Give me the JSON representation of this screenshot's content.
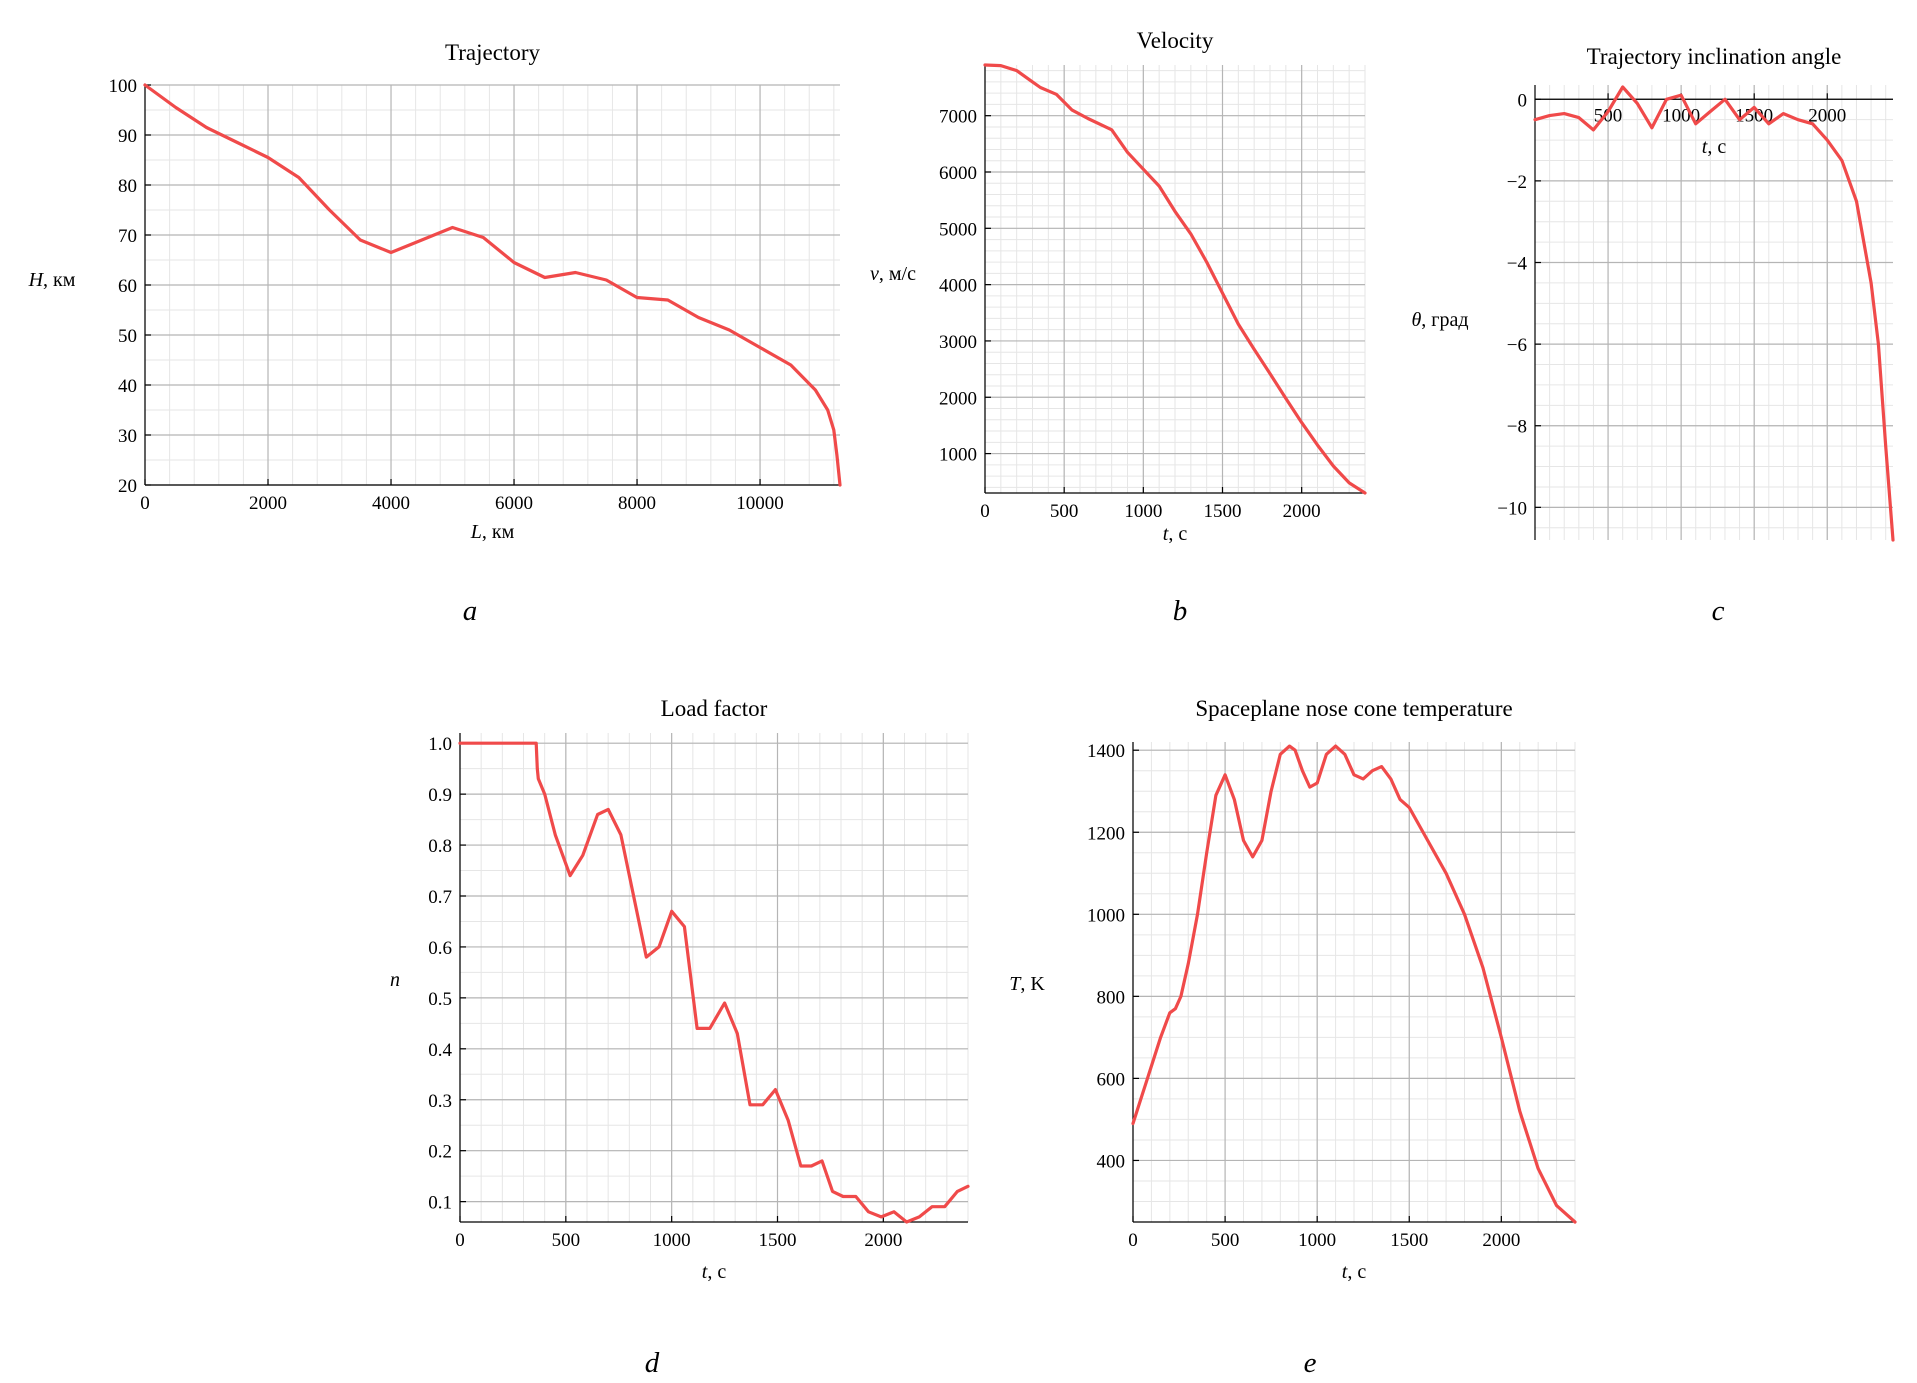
{
  "colors": {
    "series": "#f04a4a",
    "grid_major": "#b5b5b5",
    "grid_minor": "#e6e6e6"
  },
  "chart_data": [
    {
      "id": "a",
      "type": "line",
      "title": "Trajectory",
      "xlabel": "L, км",
      "ylabel": "H, км",
      "xlim": [
        0,
        11300
      ],
      "ylim": [
        20,
        100
      ],
      "xticks": [
        0,
        2000,
        4000,
        6000,
        8000,
        10000
      ],
      "yticks": [
        20,
        30,
        40,
        50,
        60,
        70,
        80,
        90,
        100
      ],
      "grid": true,
      "panel_letter": "a",
      "series": [
        {
          "x": [
            0,
            500,
            1000,
            1500,
            2000,
            2500,
            3000,
            3500,
            4000,
            4500,
            5000,
            5500,
            6000,
            6500,
            7000,
            7500,
            8000,
            8500,
            9000,
            9500,
            10000,
            10500,
            10900,
            11100,
            11200,
            11250,
            11300
          ],
          "y": [
            100,
            95.5,
            91.5,
            88.5,
            85.5,
            81.5,
            75,
            69,
            66.5,
            69,
            71.5,
            69.5,
            64.5,
            61.5,
            62.5,
            61,
            57.5,
            57,
            53.5,
            51,
            47.5,
            44,
            39,
            35,
            31,
            26,
            20
          ]
        }
      ]
    },
    {
      "id": "b",
      "type": "line",
      "title": "Velocity",
      "xlabel": "t, с",
      "ylabel": "v, м/с",
      "xlim": [
        0,
        2400
      ],
      "ylim": [
        300,
        7900
      ],
      "xticks": [
        0,
        500,
        1000,
        1500,
        2000
      ],
      "yticks": [
        1000,
        2000,
        3000,
        4000,
        5000,
        6000,
        7000
      ],
      "grid": true,
      "panel_letter": "b",
      "series": [
        {
          "x": [
            0,
            100,
            200,
            300,
            350,
            450,
            550,
            650,
            800,
            900,
            1000,
            1100,
            1200,
            1300,
            1400,
            1500,
            1600,
            1700,
            1800,
            1900,
            2000,
            2100,
            2200,
            2300,
            2400
          ],
          "y": [
            7900,
            7890,
            7800,
            7600,
            7500,
            7380,
            7100,
            6950,
            6750,
            6350,
            6050,
            5750,
            5300,
            4900,
            4400,
            3850,
            3300,
            2850,
            2420,
            1980,
            1550,
            1150,
            780,
            480,
            300
          ]
        }
      ]
    },
    {
      "id": "c",
      "type": "line",
      "title": "Trajectory inclination angle",
      "xlabel": "t, с",
      "ylabel": "θ, град",
      "xlim": [
        0,
        2450
      ],
      "ylim": [
        -10.8,
        0.35
      ],
      "xticks": [
        500,
        1000,
        1500,
        2000
      ],
      "yticks": [
        -10,
        -8,
        -6,
        -4,
        -2,
        0
      ],
      "grid": true,
      "panel_letter": "c",
      "series": [
        {
          "x": [
            0,
            100,
            200,
            300,
            400,
            500,
            600,
            700,
            800,
            900,
            1000,
            1100,
            1200,
            1300,
            1400,
            1500,
            1600,
            1700,
            1800,
            1900,
            2000,
            2100,
            2200,
            2300,
            2350,
            2400,
            2450
          ],
          "y": [
            -0.5,
            -0.4,
            -0.35,
            -0.45,
            -0.75,
            -0.3,
            0.3,
            -0.1,
            -0.7,
            0.0,
            0.1,
            -0.6,
            -0.3,
            0.0,
            -0.5,
            -0.2,
            -0.6,
            -0.35,
            -0.5,
            -0.6,
            -1.0,
            -1.5,
            -2.5,
            -4.5,
            -6.0,
            -8.5,
            -10.8
          ]
        }
      ]
    },
    {
      "id": "d",
      "type": "line",
      "title": "Load factor",
      "xlabel": "t, с",
      "ylabel": "n",
      "xlim": [
        0,
        2400
      ],
      "ylim": [
        0.06,
        1.02
      ],
      "xticks": [
        0,
        500,
        1000,
        1500,
        2000
      ],
      "yticks": [
        0.1,
        0.2,
        0.3,
        0.4,
        0.5,
        0.6,
        0.7,
        0.8,
        0.9,
        1.0
      ],
      "ytick_labels": [
        "0.1",
        "0.2",
        "0.3",
        "0.4",
        "0.5",
        "0.6",
        "0.7",
        "0.8",
        "0.9",
        "1.0"
      ],
      "grid": true,
      "panel_letter": "d",
      "series": [
        {
          "x": [
            0,
            100,
            200,
            300,
            350,
            360,
            365,
            370,
            400,
            450,
            520,
            580,
            650,
            700,
            760,
            820,
            880,
            940,
            1000,
            1060,
            1120,
            1180,
            1250,
            1310,
            1370,
            1430,
            1490,
            1550,
            1610,
            1660,
            1710,
            1760,
            1810,
            1870,
            1930,
            1990,
            2050,
            2110,
            2170,
            2230,
            2290,
            2350,
            2400
          ],
          "y": [
            1.0,
            1.0,
            1.0,
            1.0,
            1.0,
            1.0,
            0.95,
            0.93,
            0.9,
            0.82,
            0.74,
            0.78,
            0.86,
            0.87,
            0.82,
            0.7,
            0.58,
            0.6,
            0.67,
            0.64,
            0.44,
            0.44,
            0.49,
            0.43,
            0.29,
            0.29,
            0.32,
            0.26,
            0.17,
            0.17,
            0.18,
            0.12,
            0.11,
            0.11,
            0.08,
            0.07,
            0.08,
            0.06,
            0.07,
            0.09,
            0.09,
            0.12,
            0.13
          ]
        }
      ]
    },
    {
      "id": "e",
      "type": "line",
      "title": "Spaceplane nose cone temperature",
      "xlabel": "t, с",
      "ylabel": "T, K",
      "xlim": [
        0,
        2400
      ],
      "ylim": [
        250,
        1420
      ],
      "xticks": [
        0,
        500,
        1000,
        1500,
        2000
      ],
      "yticks": [
        400,
        600,
        800,
        1000,
        1200,
        1400
      ],
      "grid": true,
      "panel_letter": "e",
      "series": [
        {
          "x": [
            0,
            50,
            100,
            150,
            200,
            230,
            260,
            300,
            350,
            400,
            450,
            500,
            550,
            600,
            650,
            700,
            750,
            800,
            850,
            880,
            920,
            960,
            1000,
            1050,
            1100,
            1150,
            1200,
            1250,
            1300,
            1350,
            1400,
            1450,
            1500,
            1600,
            1700,
            1800,
            1900,
            2000,
            2100,
            2200,
            2300,
            2400
          ],
          "y": [
            490,
            560,
            630,
            700,
            760,
            770,
            800,
            880,
            1000,
            1150,
            1290,
            1340,
            1280,
            1180,
            1140,
            1180,
            1300,
            1390,
            1410,
            1400,
            1350,
            1310,
            1320,
            1390,
            1410,
            1390,
            1340,
            1330,
            1350,
            1360,
            1330,
            1280,
            1260,
            1180,
            1100,
            1000,
            870,
            700,
            520,
            380,
            290,
            250
          ]
        }
      ]
    }
  ]
}
